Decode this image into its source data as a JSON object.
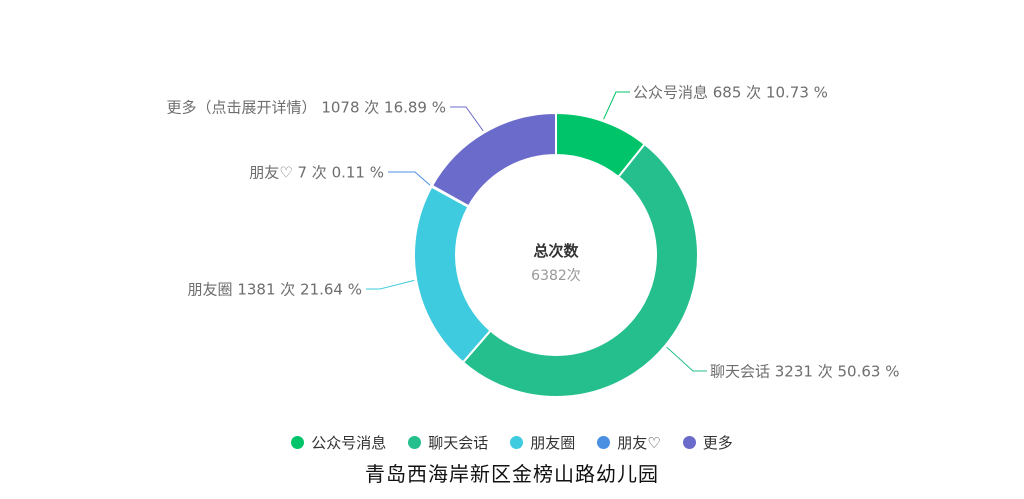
{
  "chart_data": {
    "type": "pie",
    "center": {
      "title": "总次数",
      "value": "6382次"
    },
    "series": [
      {
        "name": "公众号消息",
        "value": 685,
        "percent": 10.73,
        "label": "公众号消息 685 次 10.73 %",
        "color": "#00c46a"
      },
      {
        "name": "聊天会话",
        "value": 3231,
        "percent": 50.63,
        "label": "聊天会话 3231 次 50.63 %",
        "color": "#25bf8d"
      },
      {
        "name": "朋友圈",
        "value": 1381,
        "percent": 21.64,
        "label": "朋友圈 1381 次 21.64 %",
        "color": "#3ecbdf"
      },
      {
        "name": "朋友♡",
        "value": 7,
        "percent": 0.11,
        "label": "朋友♡ 7 次 0.11 %",
        "color": "#4a90e2"
      },
      {
        "name": "更多（点击展开详情）",
        "value": 1078,
        "percent": 16.89,
        "label": "更多（点击展开详情） 1078 次 16.89 %",
        "color": "#6b6bcc"
      }
    ],
    "legend": {
      "placement": "bottom",
      "items": [
        "公众号消息",
        "聊天会话",
        "朋友圈",
        "朋友♡",
        "更多"
      ]
    }
  },
  "caption": "青岛西海岸新区金榜山路幼儿园"
}
